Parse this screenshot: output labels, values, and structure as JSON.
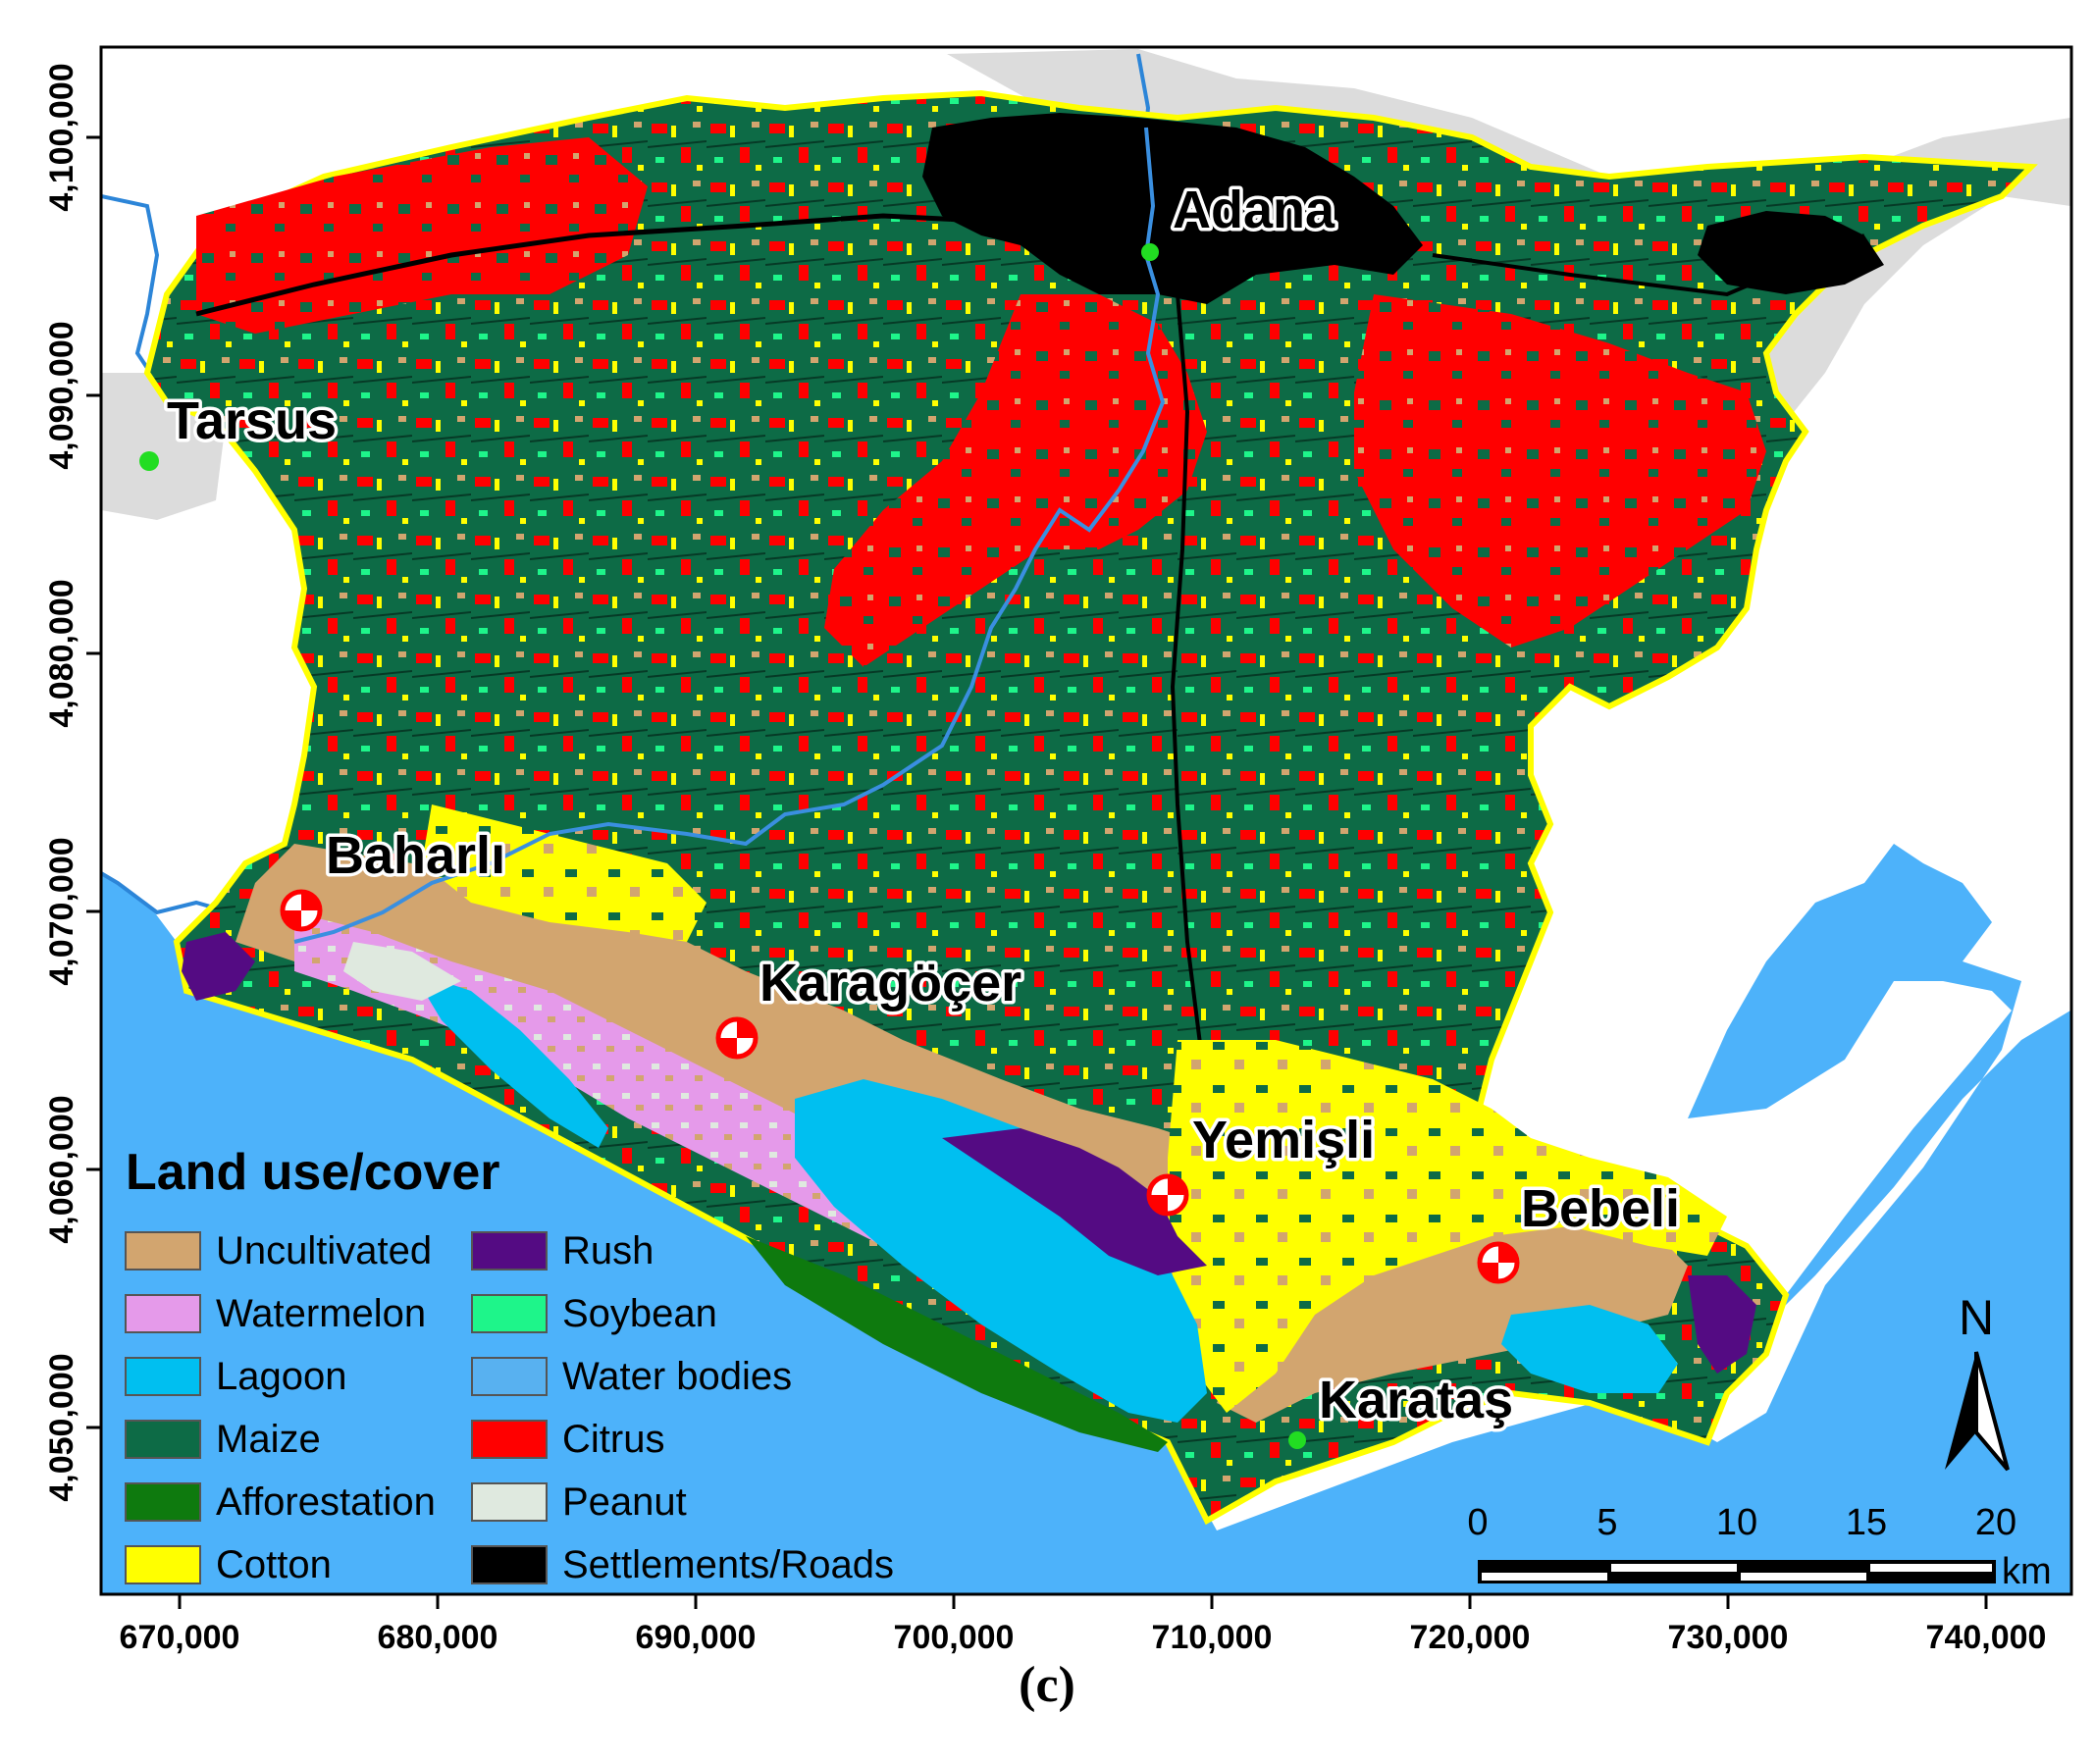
{
  "map": {
    "places": [
      {
        "name": "Adana",
        "id": "adana"
      },
      {
        "name": "Tarsus",
        "id": "tarsus"
      },
      {
        "name": "Baharlı",
        "id": "baharli"
      },
      {
        "name": "Karagöçer",
        "id": "karagocer"
      },
      {
        "name": "Yemişli",
        "id": "yemisli"
      },
      {
        "name": "Bebeli",
        "id": "bebeli"
      },
      {
        "name": "Karataş",
        "id": "karatas"
      }
    ],
    "x_ticks": [
      "670,000",
      "680,000",
      "690,000",
      "700,000",
      "710,000",
      "720,000",
      "730,000",
      "740,000"
    ],
    "y_ticks": [
      "4,100,000",
      "4,090,000",
      "4,080,000",
      "4,070,000",
      "4,060,000",
      "4,050,000"
    ],
    "legend": {
      "title": "Land use/cover",
      "items": [
        {
          "label": "Uncultivated",
          "color": "#d2a56f"
        },
        {
          "label": "Watermelon",
          "color": "#e59aea"
        },
        {
          "label": "Lagoon",
          "color": "#00bff0"
        },
        {
          "label": "Maize",
          "color": "#0d6b46"
        },
        {
          "label": "Afforestation",
          "color": "#0e7a0e"
        },
        {
          "label": "Cotton",
          "color": "#ffff00"
        },
        {
          "label": "Rush",
          "color": "#540b83"
        },
        {
          "label": "Soybean",
          "color": "#1ef58a"
        },
        {
          "label": "Water bodies",
          "color": "#58b1f0"
        },
        {
          "label": "Citrus",
          "color": "#ff0000"
        },
        {
          "label": "Peanut",
          "color": "#dfe9df"
        },
        {
          "label": "Settlements/Roads",
          "color": "#000000"
        }
      ]
    },
    "scale_bar": {
      "labels": [
        "0",
        "5",
        "10",
        "15",
        "20"
      ],
      "unit": "km"
    },
    "north_label": "N",
    "caption": "(c)",
    "colors": {
      "sea": "#4db2fa",
      "outside_land": "#ffffff",
      "grey_area": "#dcdcdc",
      "boundary": "#ffff00"
    }
  }
}
